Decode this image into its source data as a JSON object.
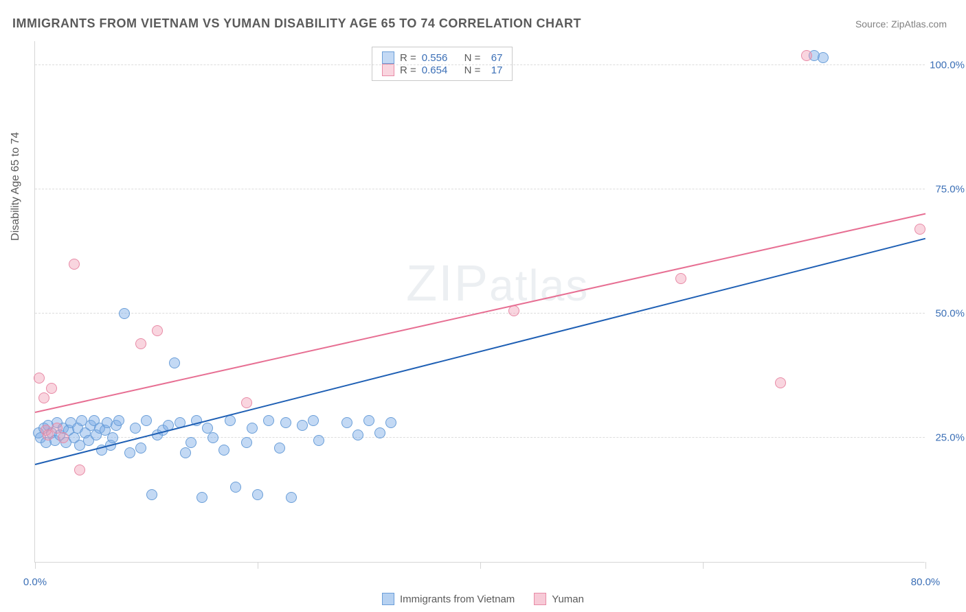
{
  "title": "IMMIGRANTS FROM VIETNAM VS YUMAN DISABILITY AGE 65 TO 74 CORRELATION CHART",
  "source_prefix": "Source: ",
  "source_name": "ZipAtlas.com",
  "ylabel": "Disability Age 65 to 74",
  "watermark": "ZIPatlas",
  "chart": {
    "type": "scatter",
    "xlim": [
      0,
      80
    ],
    "ylim": [
      0,
      105
    ],
    "xtick_positions": [
      0,
      20,
      40,
      60,
      80
    ],
    "xtick_labels": [
      "0.0%",
      "",
      "",
      "",
      "80.0%"
    ],
    "ytick_positions": [
      25,
      50,
      75,
      100
    ],
    "ytick_labels": [
      "25.0%",
      "50.0%",
      "75.0%",
      "100.0%"
    ],
    "background_color": "#ffffff",
    "grid_color": "#dcdcdc",
    "axis_color": "#d5d5d5",
    "label_color": "#3b6fb6",
    "title_color": "#5a5a5a",
    "title_fontsize": 18,
    "label_fontsize": 15,
    "marker_size": 16,
    "series": [
      {
        "name": "Immigrants from Vietnam",
        "marker_fill": "rgba(122,171,230,0.45)",
        "marker_stroke": "#6a9ed8",
        "line_color": "#1e5fb4",
        "line_width": 2,
        "R": "0.556",
        "N": "67",
        "trend": {
          "x1": 0,
          "y1": 19.5,
          "x2": 80,
          "y2": 65
        },
        "points": [
          [
            0.3,
            26
          ],
          [
            0.5,
            25
          ],
          [
            0.8,
            27
          ],
          [
            1.0,
            24
          ],
          [
            1.2,
            27.5
          ],
          [
            1.5,
            26
          ],
          [
            1.8,
            24.5
          ],
          [
            2.0,
            28
          ],
          [
            2.2,
            25.5
          ],
          [
            2.5,
            27
          ],
          [
            2.8,
            24
          ],
          [
            3.0,
            26.5
          ],
          [
            3.2,
            28
          ],
          [
            3.5,
            25
          ],
          [
            3.8,
            27
          ],
          [
            4.0,
            23.5
          ],
          [
            4.2,
            28.5
          ],
          [
            4.5,
            26
          ],
          [
            4.8,
            24.5
          ],
          [
            5.0,
            27.5
          ],
          [
            5.3,
            28.5
          ],
          [
            5.5,
            25.5
          ],
          [
            5.8,
            27
          ],
          [
            6.0,
            22.5
          ],
          [
            6.3,
            26.5
          ],
          [
            6.5,
            28
          ],
          [
            6.8,
            23.5
          ],
          [
            7.0,
            25
          ],
          [
            7.3,
            27.5
          ],
          [
            7.5,
            28.5
          ],
          [
            8.0,
            50
          ],
          [
            8.5,
            22
          ],
          [
            9.0,
            27
          ],
          [
            9.5,
            23
          ],
          [
            10.0,
            28.5
          ],
          [
            10.5,
            13.5
          ],
          [
            11.0,
            25.5
          ],
          [
            11.5,
            26.5
          ],
          [
            12.0,
            27.5
          ],
          [
            12.5,
            40
          ],
          [
            13.0,
            28
          ],
          [
            13.5,
            22
          ],
          [
            14.0,
            24
          ],
          [
            14.5,
            28.5
          ],
          [
            15.0,
            13
          ],
          [
            15.5,
            27
          ],
          [
            16.0,
            25
          ],
          [
            17.0,
            22.5
          ],
          [
            17.5,
            28.5
          ],
          [
            18.0,
            15
          ],
          [
            19.0,
            24
          ],
          [
            19.5,
            27
          ],
          [
            20.0,
            13.5
          ],
          [
            21.0,
            28.5
          ],
          [
            22.0,
            23
          ],
          [
            22.5,
            28
          ],
          [
            23.0,
            13
          ],
          [
            24.0,
            27.5
          ],
          [
            25.0,
            28.5
          ],
          [
            25.5,
            24.5
          ],
          [
            28.0,
            28
          ],
          [
            29.0,
            25.5
          ],
          [
            30.0,
            28.5
          ],
          [
            31.0,
            26
          ],
          [
            32.0,
            28
          ],
          [
            70.0,
            102
          ],
          [
            70.8,
            101.5
          ]
        ]
      },
      {
        "name": "Yuman",
        "marker_fill": "rgba(240,150,175,0.40)",
        "marker_stroke": "#e88aa6",
        "line_color": "#e76f93",
        "line_width": 2,
        "R": "0.654",
        "N": "17",
        "trend": {
          "x1": 0,
          "y1": 30,
          "x2": 80,
          "y2": 70
        },
        "points": [
          [
            0.4,
            37
          ],
          [
            0.8,
            33
          ],
          [
            1.0,
            26.5
          ],
          [
            1.2,
            25.5
          ],
          [
            1.5,
            35
          ],
          [
            2.0,
            27
          ],
          [
            2.5,
            25
          ],
          [
            3.5,
            60
          ],
          [
            4.0,
            18.5
          ],
          [
            9.5,
            44
          ],
          [
            11.0,
            46.5
          ],
          [
            19.0,
            32
          ],
          [
            43.0,
            50.5
          ],
          [
            58.0,
            57
          ],
          [
            67.0,
            36
          ],
          [
            69.3,
            102
          ],
          [
            79.5,
            67
          ]
        ]
      }
    ]
  },
  "legend_top": {
    "r_label": "R =",
    "n_label": "N ="
  },
  "legend_bottom": [
    {
      "label": "Immigrants from Vietnam",
      "fill": "rgba(122,171,230,0.55)",
      "stroke": "#6a9ed8"
    },
    {
      "label": "Yuman",
      "fill": "rgba(240,150,175,0.50)",
      "stroke": "#e88aa6"
    }
  ]
}
